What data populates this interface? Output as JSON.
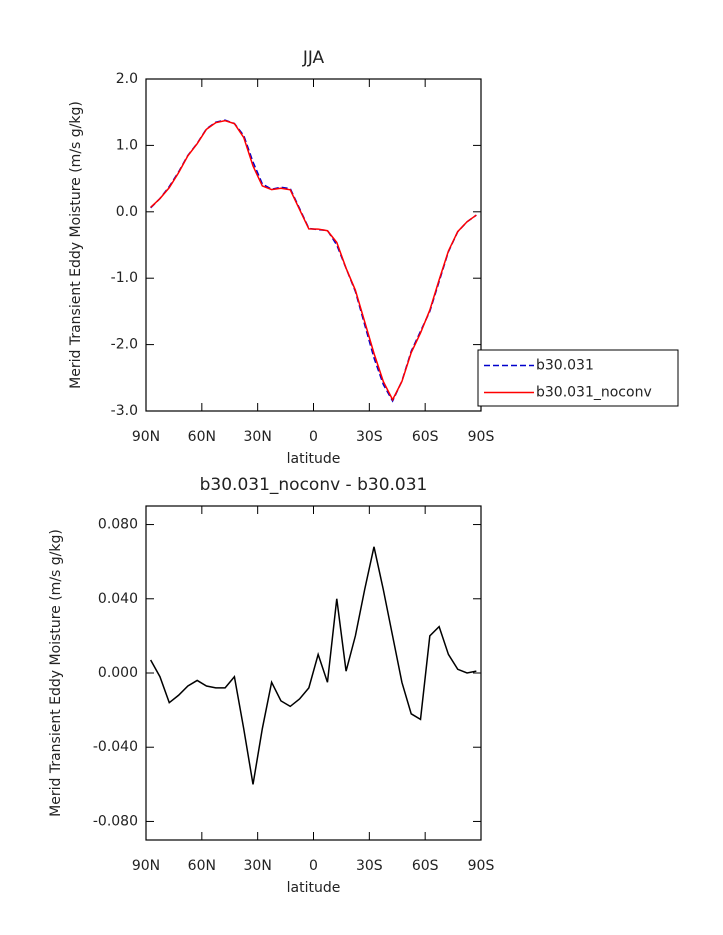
{
  "chart_data": [
    {
      "type": "line",
      "title": "JJA",
      "x_label": "latitude",
      "y_label": "Merid Transient Eddy Moisture (m/s g/kg)",
      "x": [
        87.5,
        82.5,
        77.5,
        72.5,
        67.5,
        62.5,
        57.5,
        52.5,
        47.5,
        42.5,
        37.5,
        32.5,
        27.5,
        22.5,
        17.5,
        12.5,
        7.5,
        2.5,
        -2.5,
        -7.5,
        -12.5,
        -17.5,
        -22.5,
        -27.5,
        -32.5,
        -37.5,
        -42.5,
        -47.5,
        -52.5,
        -57.5,
        -62.5,
        -67.5,
        -72.5,
        -77.5,
        -82.5,
        -87.5
      ],
      "series": [
        {
          "name": "b30.031",
          "color": "#0000cc",
          "style": "dashed",
          "values": [
            0.06,
            0.2,
            0.38,
            0.6,
            0.85,
            1.03,
            1.25,
            1.35,
            1.38,
            1.33,
            1.15,
            0.75,
            0.42,
            0.34,
            0.37,
            0.35,
            0.05,
            -0.25,
            -0.27,
            -0.28,
            -0.5,
            -0.85,
            -1.2,
            -1.7,
            -2.2,
            -2.6,
            -2.85,
            -2.55,
            -2.1,
            -1.8,
            -1.5,
            -1.05,
            -0.6,
            -0.3,
            -0.15,
            -0.05
          ]
        },
        {
          "name": "b30.031_noconv",
          "color": "#ff0000",
          "style": "solid",
          "values": [
            0.067,
            0.198,
            0.364,
            0.588,
            0.843,
            1.026,
            1.243,
            1.342,
            1.372,
            1.328,
            1.12,
            0.69,
            0.39,
            0.335,
            0.355,
            0.332,
            0.036,
            -0.258,
            -0.26,
            -0.285,
            -0.46,
            -0.849,
            -1.18,
            -1.655,
            -2.132,
            -2.555,
            -2.83,
            -2.555,
            -2.122,
            -1.825,
            -1.48,
            -1.025,
            -0.59,
            -0.298,
            -0.15,
            -0.049
          ]
        }
      ],
      "xlim": [
        90,
        -90
      ],
      "xticks": [
        {
          "value": 90,
          "label": "90N"
        },
        {
          "value": 60,
          "label": "60N"
        },
        {
          "value": 30,
          "label": "30N"
        },
        0,
        {
          "value": -30,
          "label": "30S"
        },
        {
          "value": -60,
          "label": "60S"
        },
        {
          "value": -90,
          "label": "90S"
        }
      ],
      "ylim": [
        -3,
        2
      ],
      "yticks": [
        {
          "value": -3,
          "label": "-3.0"
        },
        {
          "value": -2,
          "label": "-2.0"
        },
        {
          "value": -1,
          "label": "-1.0"
        },
        {
          "value": 0,
          "label": "0.0"
        },
        {
          "value": 1,
          "label": "1.0"
        },
        {
          "value": 2,
          "label": "2.0"
        }
      ],
      "legend": "right"
    },
    {
      "type": "line",
      "title": "b30.031_noconv - b30.031",
      "x_label": "latitude",
      "y_label": "Merid Transient Eddy Moisture (m/s g/kg)",
      "x": [
        87.5,
        82.5,
        77.5,
        72.5,
        67.5,
        62.5,
        57.5,
        52.5,
        47.5,
        42.5,
        37.5,
        32.5,
        27.5,
        22.5,
        17.5,
        12.5,
        7.5,
        2.5,
        -2.5,
        -7.5,
        -12.5,
        -17.5,
        -22.5,
        -27.5,
        -32.5,
        -37.5,
        -42.5,
        -47.5,
        -52.5,
        -57.5,
        -62.5,
        -67.5,
        -72.5,
        -77.5,
        -82.5,
        -87.5
      ],
      "values": [
        0.007,
        -0.002,
        -0.016,
        -0.012,
        -0.007,
        -0.004,
        -0.007,
        -0.008,
        -0.008,
        -0.002,
        -0.03,
        -0.06,
        -0.03,
        -0.005,
        -0.015,
        -0.018,
        -0.014,
        -0.008,
        0.01,
        -0.005,
        0.04,
        0.001,
        0.02,
        0.045,
        0.068,
        0.045,
        0.02,
        -0.005,
        -0.022,
        -0.025,
        0.02,
        0.025,
        0.01,
        0.002,
        0.0,
        0.001
      ],
      "color": "#000000",
      "xlim": [
        90,
        -90
      ],
      "xticks": [
        {
          "value": 90,
          "label": "90N"
        },
        {
          "value": 60,
          "label": "60N"
        },
        {
          "value": 30,
          "label": "30N"
        },
        0,
        {
          "value": -30,
          "label": "30S"
        },
        {
          "value": -60,
          "label": "60S"
        },
        {
          "value": -90,
          "label": "90S"
        }
      ],
      "ylim": [
        -0.09,
        0.09
      ],
      "yticks": [
        {
          "value": -0.08,
          "label": "-0.080"
        },
        {
          "value": -0.04,
          "label": "-0.040"
        },
        {
          "value": 0,
          "label": "0.000"
        },
        {
          "value": 0.04,
          "label": "0.040"
        },
        {
          "value": 0.08,
          "label": "0.080"
        }
      ]
    }
  ]
}
